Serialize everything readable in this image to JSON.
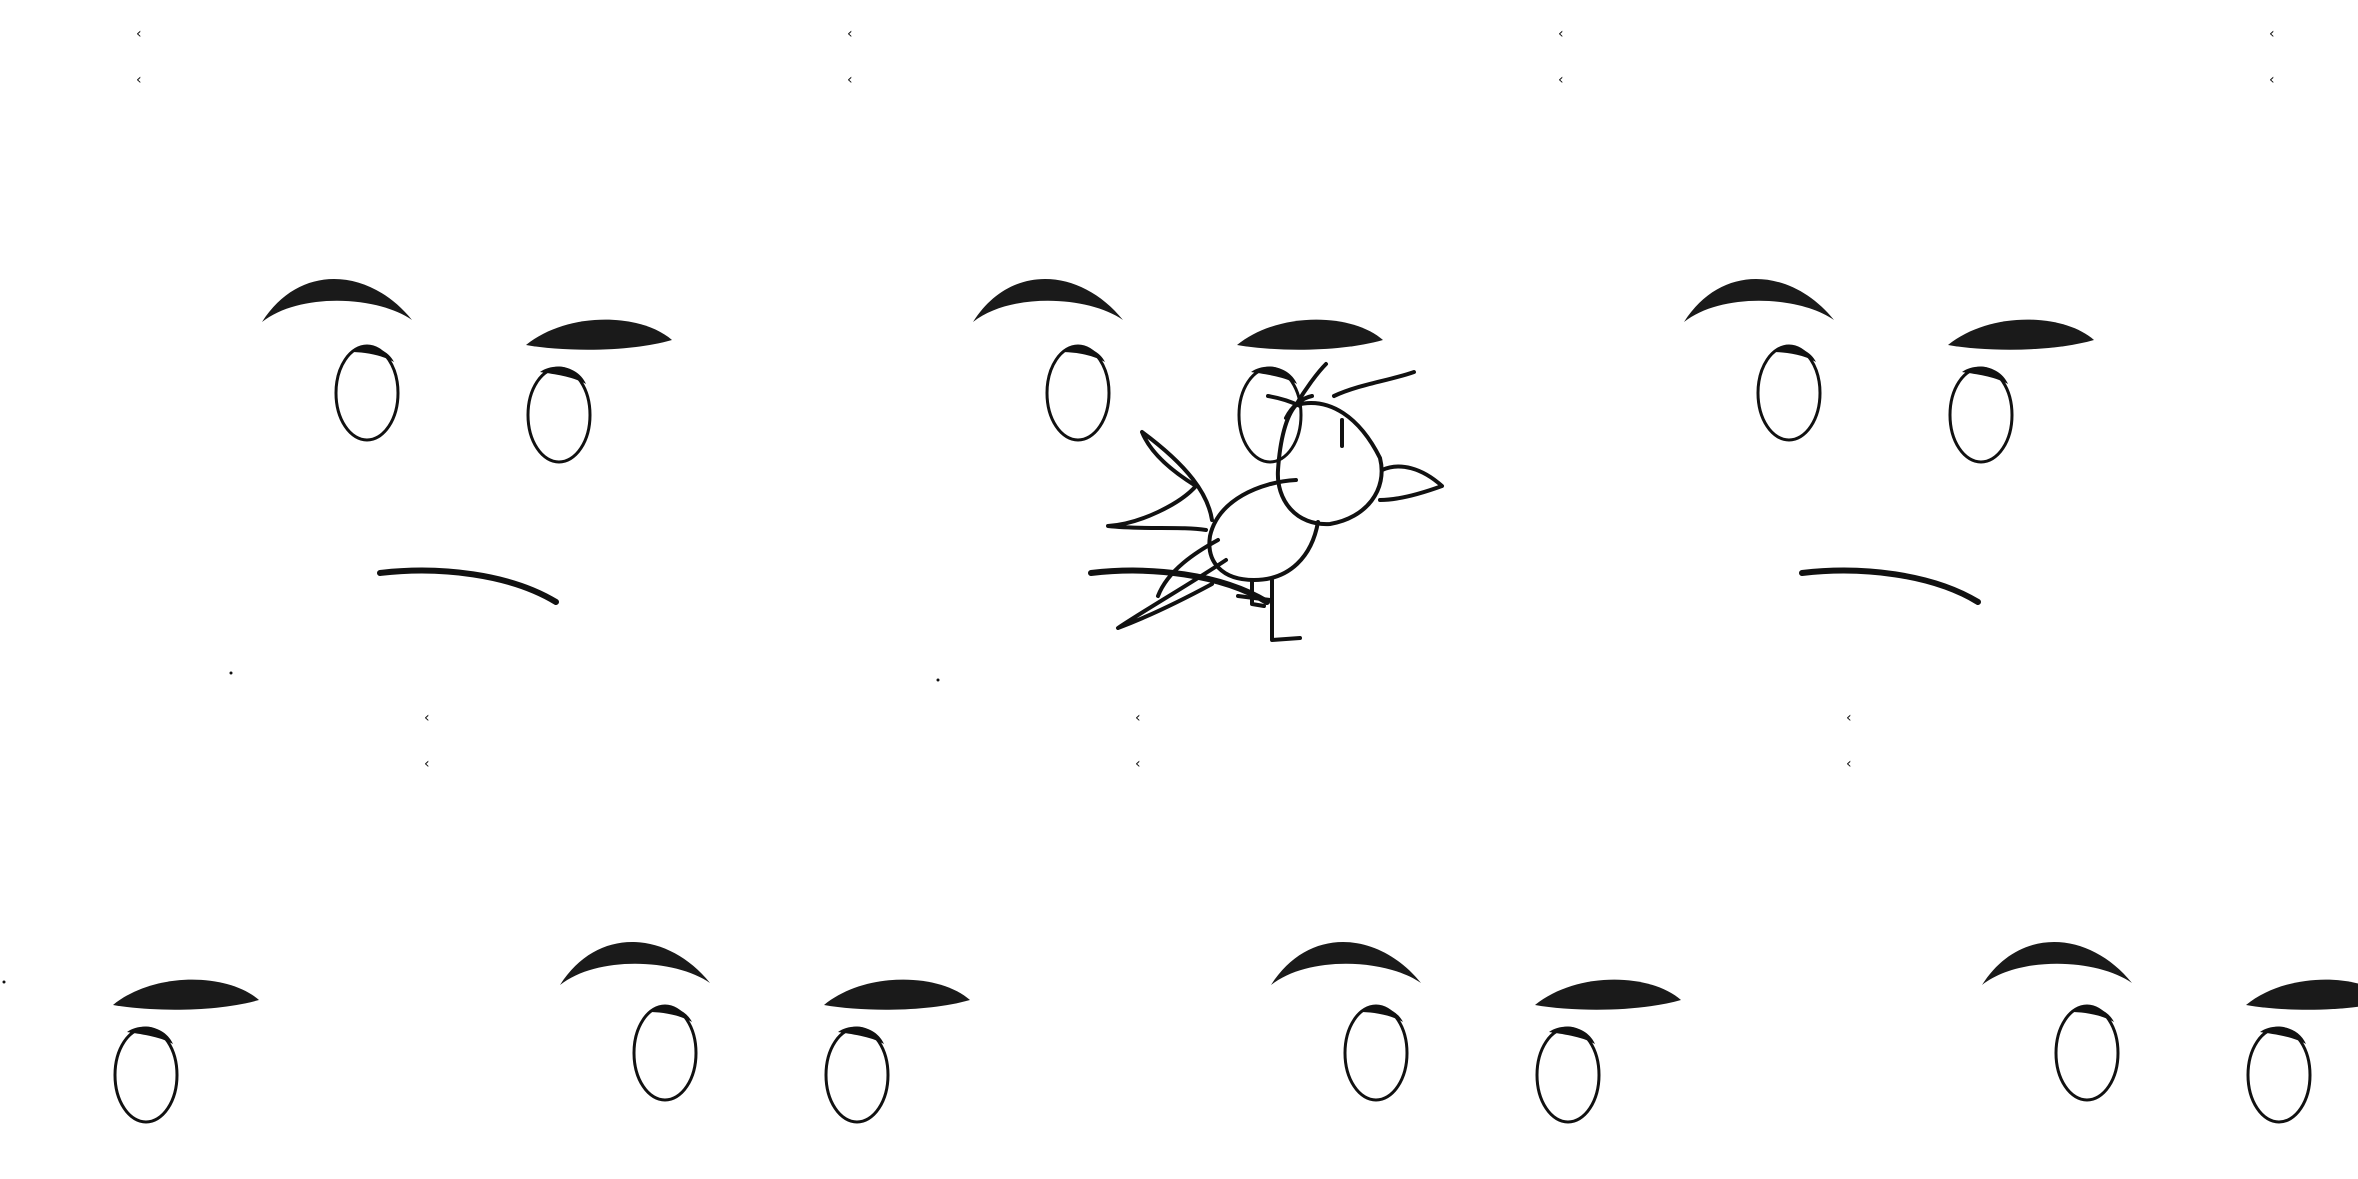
{
  "scene": {
    "background_color": "#ffffff",
    "ink_color": "#111111",
    "pattern": "tiled-face-wallpaper",
    "face_expression": "skeptical-frown",
    "scribble_subject": "hand-drawn-bird"
  }
}
